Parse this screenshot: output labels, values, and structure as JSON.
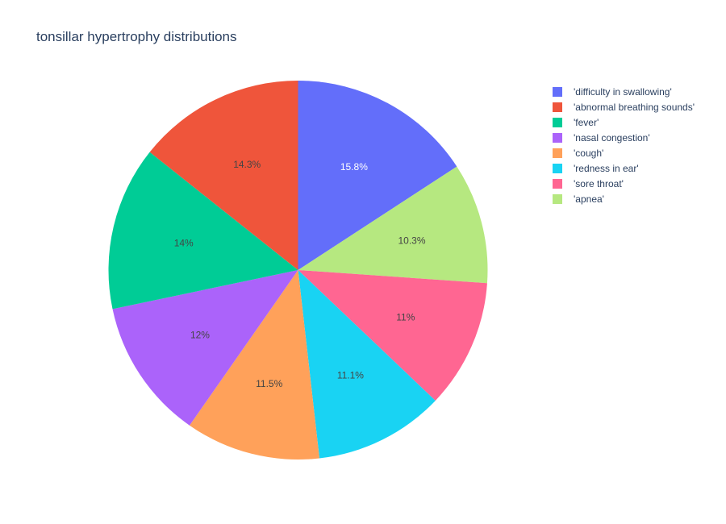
{
  "chart_data": {
    "type": "pie",
    "title": "tonsillar hypertrophy distributions",
    "labels": [
      "'difficulty in swallowing'",
      "'apnea'",
      "'sore throat'",
      "'redness in ear'",
      "'cough'",
      "'nasal congestion'",
      "'fever'",
      "'abnormal breathing sounds'"
    ],
    "values": [
      15.8,
      10.3,
      11.0,
      11.1,
      11.5,
      12.0,
      14.0,
      14.3
    ],
    "text_labels": [
      "15.8%",
      "10.3%",
      "11%",
      "11.1%",
      "11.5%",
      "12%",
      "14%",
      "14.3%"
    ],
    "colors": [
      "#636efa",
      "#b6e880",
      "#ff6692",
      "#19d3f3",
      "#ffa15a",
      "#ab63fa",
      "#00cc96",
      "#ef553b"
    ],
    "legend": {
      "placement": "top-right",
      "entries": [
        {
          "label": "'difficulty in swallowing'",
          "color": "#636efa"
        },
        {
          "label": "'abnormal breathing sounds'",
          "color": "#ef553b"
        },
        {
          "label": "'fever'",
          "color": "#00cc96"
        },
        {
          "label": "'nasal congestion'",
          "color": "#ab63fa"
        },
        {
          "label": "'cough'",
          "color": "#ffa15a"
        },
        {
          "label": "'redness in ear'",
          "color": "#19d3f3"
        },
        {
          "label": "'sore throat'",
          "color": "#ff6692"
        },
        {
          "label": "'apnea'",
          "color": "#b6e880"
        }
      ]
    }
  }
}
